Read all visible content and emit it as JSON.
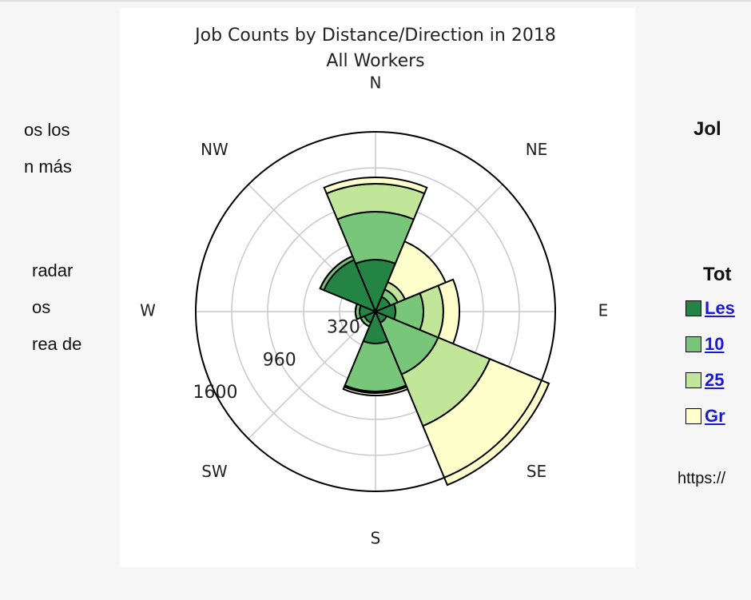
{
  "left_text": [
    "os los",
    "n más",
    "radar",
    "os",
    "rea de"
  ],
  "chart_data": {
    "type": "polar_bar",
    "title": "Job Counts by Distance/Direction in 2018",
    "subtitle": "All Workers",
    "categories": [
      "N",
      "NE",
      "E",
      "SE",
      "S",
      "SW",
      "W",
      "NW"
    ],
    "series": [
      {
        "name": "Les",
        "color": "#238443",
        "values": [
          462,
          142,
          178,
          107,
          284,
          107,
          142,
          498
        ]
      },
      {
        "name": "10",
        "color": "#78c679",
        "values": [
          427,
          71,
          249,
          497,
          427,
          36,
          36,
          36
        ]
      },
      {
        "name": "25",
        "color": "#c2e699",
        "values": [
          249,
          71,
          177,
          498,
          14,
          0,
          0,
          0
        ]
      },
      {
        "name": "Gr",
        "color": "#ffffcc",
        "values": [
          57,
          392,
          143,
          569,
          22,
          0,
          0,
          0
        ]
      }
    ],
    "rlim": [
      0,
      1600
    ],
    "rticks": [
      320,
      {
        "value": 640,
        "label": null
      },
      960,
      {
        "value": 1280,
        "label": null
      },
      1600
    ],
    "grid": true
  },
  "right_panel": {
    "title": "Jol",
    "total": "Tot",
    "url": "https://"
  }
}
